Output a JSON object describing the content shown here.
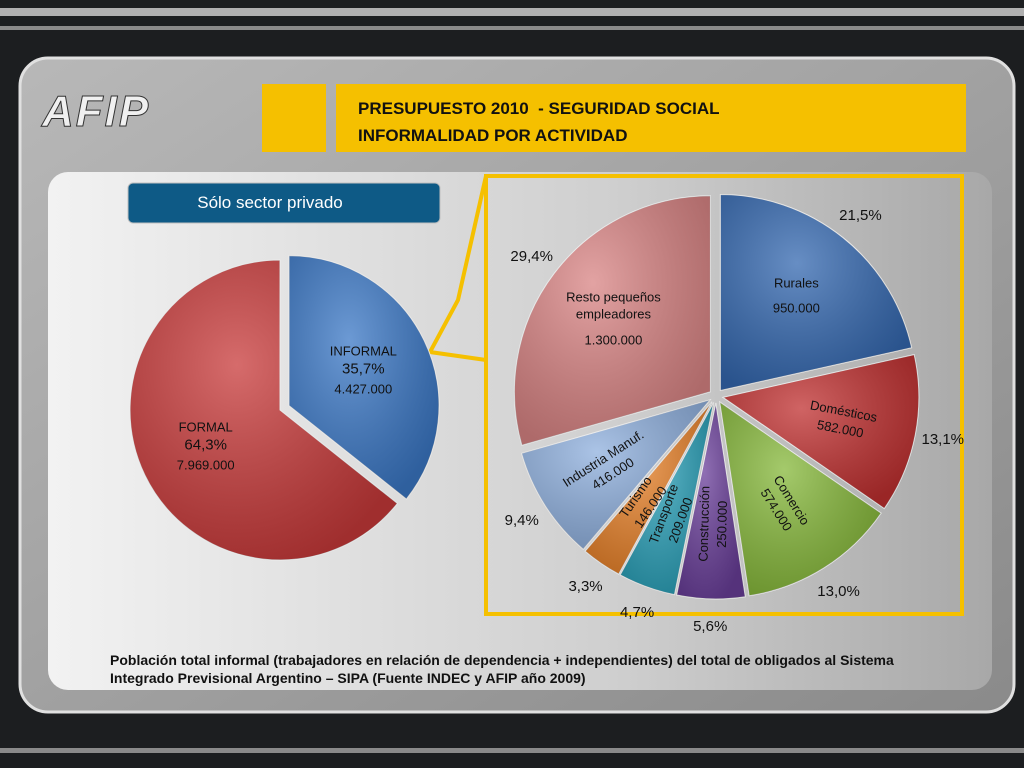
{
  "header": {
    "logo": "AFIP",
    "title_line1": "PRESUPUESTO 2010  - SEGURIDAD SOCIAL",
    "title_line2": "INFORMALIDAD POR ACTIVIDAD"
  },
  "badge": "Sólo sector privado",
  "chart_data": [
    {
      "type": "pie",
      "start_angle": 0,
      "direction": "clockwise",
      "categories": [
        "INFORMAL",
        "FORMAL"
      ],
      "values": [
        35.7,
        64.3
      ],
      "value_labels": [
        "35,7%",
        "64,3%"
      ],
      "amounts": [
        4427000,
        7969000
      ],
      "amount_labels": [
        "4.427.000",
        "7.969.000"
      ],
      "colors": [
        "#3b78c6",
        "#c83a3a"
      ],
      "exploded": [
        true,
        false
      ]
    },
    {
      "type": "pie",
      "start_angle": 0,
      "direction": "clockwise",
      "categories": [
        "Rurales",
        "Domésticos",
        "Comercio",
        "Construcción",
        "Transporte",
        "Turismo",
        "Industria Manuf.",
        "Resto pequeños empleadores"
      ],
      "values": [
        21.5,
        13.1,
        13.0,
        5.6,
        4.7,
        3.3,
        9.4,
        29.4
      ],
      "value_labels": [
        "21,5%",
        "13,1%",
        "13,0%",
        "5,6%",
        "4,7%",
        "3,3%",
        "9,4%",
        "29,4%"
      ],
      "amounts": [
        950000,
        582000,
        574000,
        250000,
        209000,
        146000,
        416000,
        1300000
      ],
      "amount_labels": [
        "950.000",
        "582.000",
        "574.000",
        "250.000",
        "209.000",
        "146.000",
        "416.000",
        "1.300.000"
      ],
      "colors": [
        "#3468b0",
        "#c03030",
        "#86b83a",
        "#6a3f9a",
        "#2aa0b8",
        "#e8822a",
        "#8fb0de",
        "#d98484"
      ]
    }
  ],
  "footnote": "Población total informal (trabajadores en relación de dependencia + independientes) del total de obligados al Sistema Integrado Previsional Argentino – SIPA  (Fuente  INDEC y AFIP año 2009)"
}
